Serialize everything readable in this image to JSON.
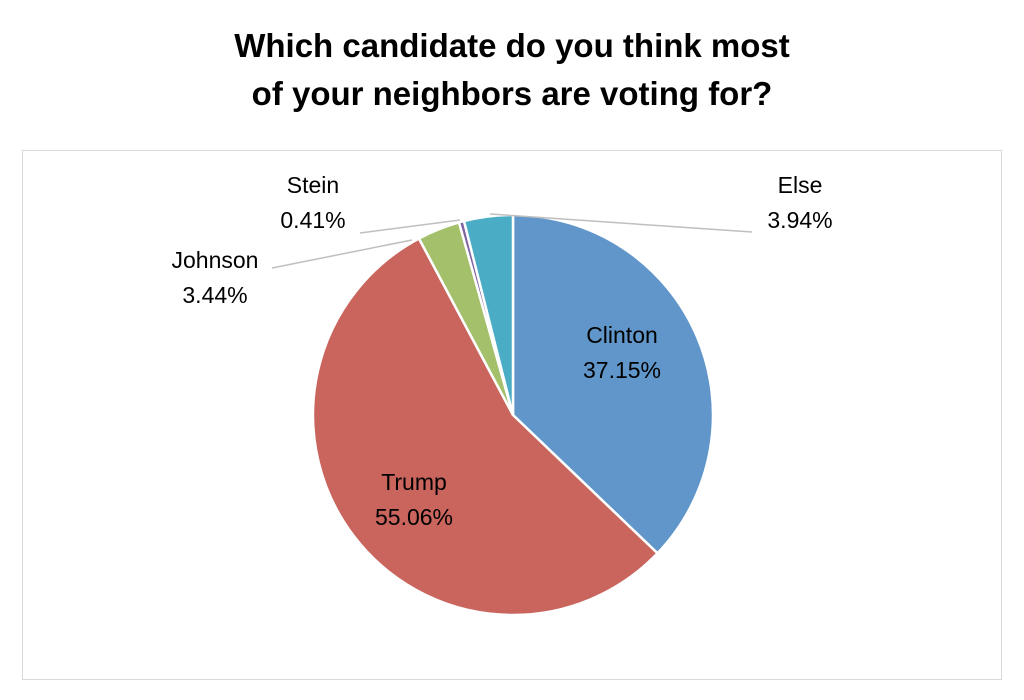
{
  "chart_data": {
    "type": "pie",
    "title_lines": [
      "Which candidate do you think most",
      "of your neighbors are voting for?"
    ],
    "start_angle": "12 o'clock, clockwise",
    "slices": [
      {
        "name": "Clinton",
        "value": 37.15,
        "label": "37.15%",
        "color": "#6096C9"
      },
      {
        "name": "Trump",
        "value": 55.06,
        "label": "55.06%",
        "color": "#C9655D"
      },
      {
        "name": "Johnson",
        "value": 3.44,
        "label": "3.44%",
        "color": "#A5C06B"
      },
      {
        "name": "Stein",
        "value": 0.41,
        "label": "0.41%",
        "color": "#8064A2"
      },
      {
        "name": "Else",
        "value": 3.94,
        "label": "3.94%",
        "color": "#4BACC6"
      }
    ],
    "legend": "none"
  }
}
